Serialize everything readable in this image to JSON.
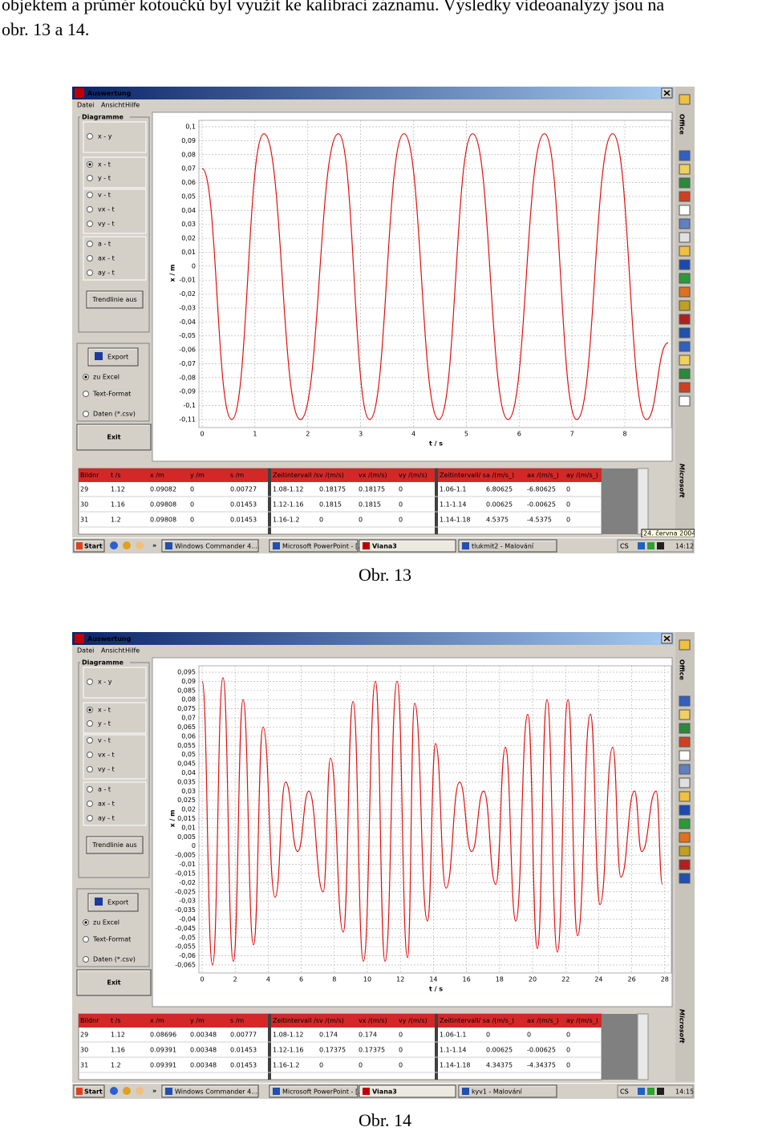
{
  "document": {
    "text": [
      "objektem a průměr kotoučků byl využit ke kalibraci záznamu. Výsledky videoanalýzy jsou na",
      "obr. 13 a 14."
    ],
    "window": {
      "title": "Auswertung",
      "menu": [
        "Datei",
        "Ansicht",
        "Hilfe"
      ],
      "group": "Diagramme",
      "radios": [
        [
          "x - y"
        ],
        [
          "x - t",
          "y - t"
        ],
        [
          "v - t",
          "vx - t",
          "vy - t"
        ],
        [
          "a - t",
          "ax - t",
          "ay - t"
        ]
      ],
      "trend": "Trendlinie aus",
      "export": "Export",
      "formats": [
        "zu Excel",
        "Text-Format",
        "Daten (*.csv)"
      ],
      "exit": "Exit",
      "office": "Office",
      "brand": "Microsoft",
      "start": "Start",
      "tray": "CS",
      "table_headers": [
        "Bildnr",
        "t /s",
        "x /m",
        "y /m",
        "s /m",
        "Zeitintervall /s",
        "v /(m/s)",
        "vx /(m/s)",
        "vy /(m/s)",
        "Zeitintervall/ s",
        "a /(m/s_)",
        "ax /(m/s_)",
        "ay /(m/s_)"
      ]
    },
    "screenshots": [
      {
        "table_rows": [
          [
            "29",
            "1.12",
            "0.09082",
            "0",
            "0.00727",
            "1.08-1.12",
            "0.18175",
            "0.18175",
            "0",
            "1.06-1.1",
            "6.80625",
            "-6.80625",
            "0"
          ],
          [
            "30",
            "1.16",
            "0.09808",
            "0",
            "0.01453",
            "1.12-1.16",
            "0.1815",
            "0.1815",
            "0",
            "1.1-1.14",
            "0.00625",
            "-0.00625",
            "0"
          ],
          [
            "31",
            "1.2",
            "0.09808",
            "0",
            "0.01453",
            "1.16-1.2",
            "0",
            "0",
            "0",
            "1.14-1.18",
            "4.5375",
            "-4.5375",
            "0"
          ]
        ],
        "taskbar": [
          "Windows Commander 4....",
          "Microsoft PowerPoint - [...",
          "Viana3",
          "tlukmit2 - Malování"
        ],
        "clock": "14:12",
        "date": "24. června 2004",
        "caption": "Obr. 13"
      },
      {
        "table_rows": [
          [
            "29",
            "1.12",
            "0.08696",
            "0.00348",
            "0.00777",
            "1.08-1.12",
            "0.174",
            "0.174",
            "0",
            "1.06-1.1",
            "0",
            "0",
            "0"
          ],
          [
            "30",
            "1.16",
            "0.09391",
            "0.00348",
            "0.01453",
            "1.12-1.16",
            "0.17375",
            "0.17375",
            "0",
            "1.1-1.14",
            "0.00625",
            "-0.00625",
            "0"
          ],
          [
            "31",
            "1.2",
            "0.09391",
            "0.00348",
            "0.01453",
            "1.16-1.2",
            "0",
            "0",
            "0",
            "1.14-1.18",
            "4.34375",
            "-4.34375",
            "0"
          ]
        ],
        "taskbar": [
          "Windows Commander 4....",
          "Microsoft PowerPoint - [...",
          "Viana3",
          "kyv1 - Malování"
        ],
        "clock": "14:15",
        "caption": "Obr. 14"
      }
    ]
  },
  "chart_data": [
    {
      "type": "line",
      "x_label": "t / s",
      "y_label": "x / m",
      "color": "#e01010",
      "grid": true,
      "x": [
        0,
        0.56,
        1.17,
        1.86,
        2.58,
        3.17,
        3.82,
        4.48,
        5.12,
        5.79,
        6.48,
        7.09,
        7.77,
        8.41,
        8.82
      ],
      "values": [
        0.07,
        -0.11,
        0.095,
        -0.11,
        0.095,
        -0.11,
        0.095,
        -0.11,
        0.095,
        -0.11,
        0.095,
        -0.11,
        0.095,
        -0.11,
        -0.055
      ],
      "xlim": [
        0,
        8.85
      ],
      "xticks": [
        0,
        1,
        2,
        3,
        4,
        5,
        6,
        7,
        8
      ],
      "ylim": [
        -0.11,
        0.1
      ],
      "yticks": [
        {
          "value": 0.1,
          "label": "0,1"
        },
        {
          "value": 0.09,
          "label": "0,09"
        },
        {
          "value": 0.08,
          "label": "0,08"
        },
        {
          "value": 0.07,
          "label": "0,07"
        },
        {
          "value": 0.06,
          "label": "0,06"
        },
        {
          "value": 0.05,
          "label": "0,05"
        },
        {
          "value": 0.04,
          "label": "0,04"
        },
        {
          "value": 0.03,
          "label": "0,03"
        },
        {
          "value": 0.02,
          "label": "0,02"
        },
        {
          "value": 0.01,
          "label": "0,01"
        },
        0,
        {
          "value": -0.01,
          "label": "-0,01"
        },
        {
          "value": -0.02,
          "label": "-0,02"
        },
        {
          "value": -0.03,
          "label": "-0,03"
        },
        {
          "value": -0.04,
          "label": "-0,04"
        },
        {
          "value": -0.05,
          "label": "-0,05"
        },
        {
          "value": -0.06,
          "label": "-0,06"
        },
        {
          "value": -0.07,
          "label": "-0,07"
        },
        {
          "value": -0.08,
          "label": "-0,08"
        },
        {
          "value": -0.09,
          "label": "-0,09"
        },
        {
          "value": -0.1,
          "label": "-0,1"
        },
        {
          "value": -0.11,
          "label": "-0,11"
        }
      ]
    },
    {
      "type": "line",
      "x_label": "t / s",
      "y_label": "x / m",
      "color": "#e01010",
      "grid": true,
      "x": [
        0,
        0.63,
        1.26,
        1.89,
        2.48,
        3.11,
        3.69,
        4.42,
        5.05,
        5.78,
        6.46,
        7.33,
        7.77,
        8.54,
        9.13,
        9.76,
        10.49,
        11.07,
        11.8,
        12.43,
        12.86,
        13.64,
        14.13,
        14.76,
        15.58,
        16.31,
        17.04,
        17.77,
        18.35,
        18.98,
        19.71,
        20.29,
        20.87,
        21.5,
        22.14,
        22.72,
        23.5,
        24.08,
        24.85,
        25.34,
        26.17,
        26.6,
        27.48,
        27.86
      ],
      "values": [
        0.09,
        -0.065,
        0.092,
        -0.063,
        0.08,
        -0.054,
        0.065,
        -0.028,
        0.035,
        -0.003,
        0.03,
        -0.025,
        0.048,
        -0.047,
        0.079,
        -0.063,
        0.09,
        -0.063,
        0.09,
        -0.061,
        0.078,
        -0.041,
        0.056,
        -0.023,
        0.035,
        -0.003,
        0.03,
        -0.021,
        0.054,
        -0.041,
        0.072,
        -0.056,
        0.08,
        -0.058,
        0.08,
        -0.049,
        0.072,
        -0.032,
        0.054,
        -0.017,
        0.03,
        -0.003,
        0.03,
        -0.021
      ],
      "xlim": [
        0,
        28.3
      ],
      "xticks": [
        0,
        2,
        4,
        6,
        8,
        10,
        12,
        14,
        16,
        18,
        20,
        22,
        24,
        26,
        28
      ],
      "ylim": [
        -0.065,
        0.095
      ],
      "yticks": [
        {
          "value": 0.095,
          "label": "0,095"
        },
        {
          "value": 0.09,
          "label": "0,09"
        },
        {
          "value": 0.085,
          "label": "0,085"
        },
        {
          "value": 0.08,
          "label": "0,08"
        },
        {
          "value": 0.075,
          "label": "0,075"
        },
        {
          "value": 0.07,
          "label": "0,07"
        },
        {
          "value": 0.065,
          "label": "0,065"
        },
        {
          "value": 0.06,
          "label": "0,06"
        },
        {
          "value": 0.055,
          "label": "0,055"
        },
        {
          "value": 0.05,
          "label": "0,05"
        },
        {
          "value": 0.045,
          "label": "0,045"
        },
        {
          "value": 0.04,
          "label": "0,04"
        },
        {
          "value": 0.035,
          "label": "0,035"
        },
        {
          "value": 0.03,
          "label": "0,03"
        },
        {
          "value": 0.025,
          "label": "0,025"
        },
        {
          "value": 0.02,
          "label": "0,02"
        },
        {
          "value": 0.015,
          "label": "0,015"
        },
        {
          "value": 0.01,
          "label": "0,01"
        },
        {
          "value": 0.005,
          "label": "0,005"
        },
        0,
        {
          "value": -0.005,
          "label": "-0,005"
        },
        {
          "value": -0.01,
          "label": "-0,01"
        },
        {
          "value": -0.015,
          "label": "-0,015"
        },
        {
          "value": -0.02,
          "label": "-0,02"
        },
        {
          "value": -0.025,
          "label": "-0,025"
        },
        {
          "value": -0.03,
          "label": "-0,03"
        },
        {
          "value": -0.035,
          "label": "-0,035"
        },
        {
          "value": -0.04,
          "label": "-0,04"
        },
        {
          "value": -0.045,
          "label": "-0,045"
        },
        {
          "value": -0.05,
          "label": "-0,05"
        },
        {
          "value": -0.055,
          "label": "-0,055"
        },
        {
          "value": -0.06,
          "label": "-0,06"
        },
        {
          "value": -0.065,
          "label": "-0,065"
        }
      ]
    }
  ]
}
